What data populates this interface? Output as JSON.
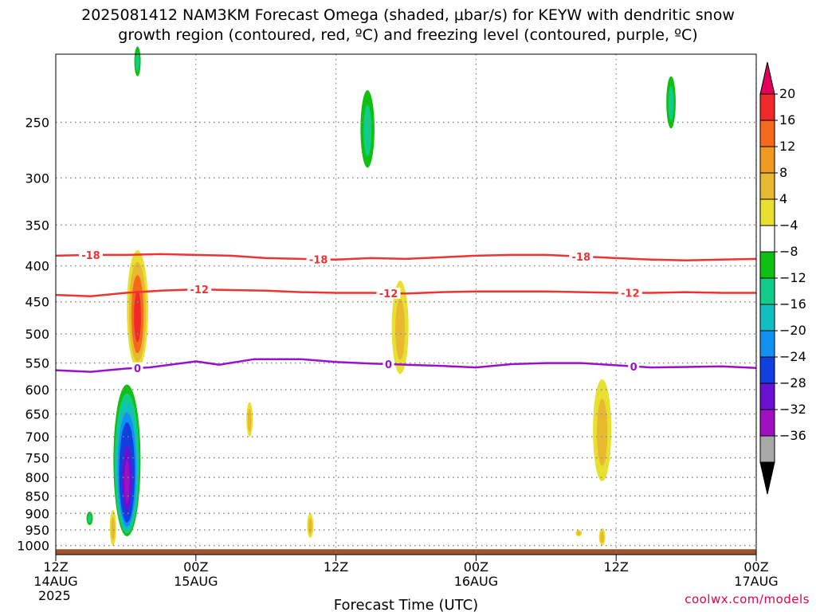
{
  "title_line1": "2025081412 NAM3KM Forecast Omega (shaded, μbar/s) for KEYW with dendritic snow",
  "title_line2": "growth region (contoured, red, ºC) and freezing level (contoured, purple, ºC)",
  "credit": "coolwx.com/models",
  "colors": {
    "isotherm_red": "#ee3333",
    "freezing_purple": "#9911cc",
    "ground": "#a0522d",
    "grid": "#888888"
  },
  "chart_data": {
    "type": "heatmap",
    "title": "2025081412 NAM3KM Forecast Omega (shaded, μbar/s) for KEYW with dendritic snow growth region (contoured, red, ºC) and freezing level (contoured, purple, ºC)",
    "xlabel": "Forecast Time (UTC)",
    "ylabel": "",
    "x_range_hours": [
      0,
      60
    ],
    "y_range_hpa": [
      1030,
      200
    ],
    "y_scale": "log-pressure",
    "grid": true,
    "y_ticks": [
      250,
      300,
      350,
      400,
      450,
      500,
      550,
      600,
      650,
      700,
      750,
      800,
      850,
      900,
      950,
      1000
    ],
    "x_ticks": [
      {
        "hour": 0,
        "lines": [
          "12Z",
          "14AUG",
          "2025"
        ]
      },
      {
        "hour": 12,
        "lines": [
          "00Z",
          "15AUG"
        ]
      },
      {
        "hour": 24,
        "lines": [
          "12Z"
        ]
      },
      {
        "hour": 36,
        "lines": [
          "00Z",
          "16AUG"
        ]
      },
      {
        "hour": 48,
        "lines": [
          "12Z"
        ]
      },
      {
        "hour": 60,
        "lines": [
          "00Z",
          "17AUG"
        ]
      }
    ],
    "colorbar": {
      "labels": [
        "20",
        "16",
        "12",
        "8",
        "4",
        "−4",
        "−8",
        "−12",
        "−16",
        "−20",
        "−24",
        "−28",
        "−32",
        "−36"
      ],
      "colors": [
        "#e3005a",
        "#f02a2a",
        "#f56a1a",
        "#f09a22",
        "#e8b830",
        "#e8e030",
        "#ffffff",
        "#10c010",
        "#10cc88",
        "#10c0c0",
        "#1090f0",
        "#1040e0",
        "#6a10d0",
        "#a010c0",
        "#a8a8a8",
        "#000000"
      ]
    },
    "contours": [
      {
        "label": "-18",
        "color": "red",
        "points": [
          [
            0,
            387
          ],
          [
            3,
            386
          ],
          [
            6,
            386
          ],
          [
            9,
            385
          ],
          [
            12,
            386
          ],
          [
            15,
            387
          ],
          [
            18,
            390
          ],
          [
            21,
            391
          ],
          [
            24,
            392
          ],
          [
            27,
            390
          ],
          [
            30,
            391
          ],
          [
            33,
            389
          ],
          [
            36,
            387
          ],
          [
            39,
            386
          ],
          [
            42,
            386
          ],
          [
            45,
            388
          ],
          [
            48,
            390
          ],
          [
            51,
            392
          ],
          [
            54,
            393
          ],
          [
            57,
            392
          ],
          [
            60,
            391
          ]
        ],
        "label_hours": [
          3,
          22.5,
          45
        ]
      },
      {
        "label": "-12",
        "color": "red",
        "points": [
          [
            0,
            440
          ],
          [
            3,
            442
          ],
          [
            6,
            437
          ],
          [
            9,
            434
          ],
          [
            12,
            432
          ],
          [
            15,
            433
          ],
          [
            18,
            434
          ],
          [
            21,
            436
          ],
          [
            24,
            437
          ],
          [
            27,
            437
          ],
          [
            30,
            438
          ],
          [
            33,
            436
          ],
          [
            36,
            435
          ],
          [
            39,
            435
          ],
          [
            42,
            435
          ],
          [
            45,
            436
          ],
          [
            48,
            437
          ],
          [
            51,
            437
          ],
          [
            54,
            436
          ],
          [
            57,
            437
          ],
          [
            60,
            437
          ]
        ],
        "label_hours": [
          12.3,
          28.5,
          49.2
        ]
      },
      {
        "label": "0",
        "color": "purple",
        "points": [
          [
            0,
            563
          ],
          [
            3,
            566
          ],
          [
            6,
            560
          ],
          [
            8,
            558
          ],
          [
            12,
            547
          ],
          [
            14,
            553
          ],
          [
            17,
            543
          ],
          [
            21,
            543
          ],
          [
            24,
            548
          ],
          [
            27,
            551
          ],
          [
            30,
            553
          ],
          [
            33,
            555
          ],
          [
            36,
            558
          ],
          [
            39,
            552
          ],
          [
            42,
            550
          ],
          [
            45,
            550
          ],
          [
            48,
            554
          ],
          [
            51,
            558
          ],
          [
            54,
            557
          ],
          [
            57,
            556
          ],
          [
            60,
            559
          ]
        ],
        "label_hours": [
          7,
          28.5,
          49.5
        ]
      }
    ],
    "omega_features": [
      {
        "t": 7,
        "p_top": 380,
        "p_bottom": 560,
        "max": 18,
        "sign": "positive"
      },
      {
        "t": 6.1,
        "p_top": 590,
        "p_bottom": 970,
        "min": -32,
        "sign": "negative"
      },
      {
        "t": 2.9,
        "p_top": 895,
        "p_bottom": 935,
        "min": -8,
        "sign": "negative"
      },
      {
        "t": 7.0,
        "p_top": 195,
        "p_bottom": 215,
        "min": -8,
        "sign": "negative"
      },
      {
        "t": 29.5,
        "p_top": 420,
        "p_bottom": 570,
        "max": 8,
        "sign": "positive"
      },
      {
        "t": 46.8,
        "p_top": 580,
        "p_bottom": 810,
        "max": 8,
        "sign": "positive"
      },
      {
        "t": 16.6,
        "p_top": 625,
        "p_bottom": 700,
        "max": 8,
        "sign": "positive"
      },
      {
        "t": 21.8,
        "p_top": 900,
        "p_bottom": 975,
        "max": 8,
        "sign": "positive"
      },
      {
        "t": 4.9,
        "p_top": 890,
        "p_bottom": 1000,
        "max": 8,
        "sign": "positive"
      },
      {
        "t": 46.8,
        "p_top": 945,
        "p_bottom": 1000,
        "max": 8,
        "sign": "positive"
      },
      {
        "t": 44.8,
        "p_top": 950,
        "p_bottom": 970,
        "max": 8,
        "sign": "positive"
      },
      {
        "t": 26.7,
        "p_top": 225,
        "p_bottom": 290,
        "min": -8,
        "sign": "negative"
      },
      {
        "t": 52.7,
        "p_top": 215,
        "p_bottom": 255,
        "min": -8,
        "sign": "negative"
      }
    ]
  }
}
